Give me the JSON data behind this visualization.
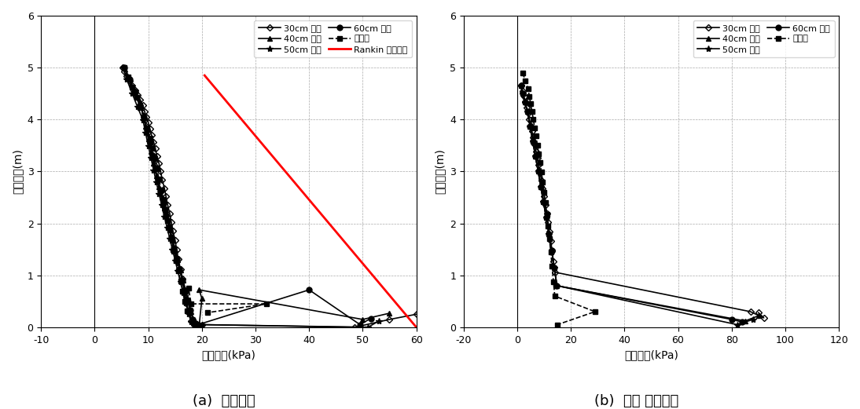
{
  "left": {
    "xlabel": "수평토압(kPa)",
    "ylabel": "벽체높이(m)",
    "xlim": [
      -10,
      60
    ],
    "ylim": [
      0,
      6
    ],
    "xticks": [
      -10,
      0,
      10,
      20,
      30,
      40,
      50,
      60
    ],
    "yticks": [
      0,
      1,
      2,
      3,
      4,
      5,
      6
    ],
    "caption": "(a)  수평토압",
    "series": {
      "30cm": {
        "label": "30cm 간격",
        "marker": "D",
        "markersize": 4,
        "fillstyle": "none",
        "color": "#000000",
        "x": [
          5.2,
          5.5,
          6.0,
          6.5,
          7.0,
          7.5,
          8.0,
          8.5,
          9.0,
          9.3,
          9.6,
          10.0,
          10.3,
          10.6,
          11.0,
          11.3,
          11.6,
          12.0,
          12.3,
          12.6,
          13.0,
          13.3,
          13.6,
          14.0,
          14.3,
          14.6,
          15.0,
          15.3,
          15.6,
          16.0,
          16.3,
          16.6,
          17.0,
          17.5,
          18.0,
          18.5,
          19.0,
          19.5,
          20.0,
          48.5,
          55.0,
          60.0
        ],
        "y": [
          5.0,
          4.92,
          4.83,
          4.74,
          4.65,
          4.56,
          4.47,
          4.38,
          4.27,
          4.16,
          4.05,
          3.94,
          3.82,
          3.7,
          3.57,
          3.44,
          3.3,
          3.15,
          3.0,
          2.84,
          2.68,
          2.52,
          2.36,
          2.19,
          2.02,
          1.85,
          1.67,
          1.49,
          1.31,
          1.12,
          0.93,
          0.73,
          0.53,
          0.32,
          0.12,
          0.05,
          0.05,
          0.05,
          0.05,
          0.0,
          0.15,
          0.25
        ]
      },
      "40cm": {
        "label": "40cm 간격",
        "marker": "^",
        "markersize": 5,
        "fillstyle": "full",
        "color": "#000000",
        "x": [
          5.5,
          6.5,
          7.5,
          8.5,
          9.0,
          9.5,
          10.0,
          10.5,
          11.0,
          11.5,
          12.0,
          12.5,
          13.0,
          13.5,
          14.0,
          14.5,
          15.0,
          15.5,
          16.0,
          16.5,
          17.0,
          17.5,
          18.0,
          18.5,
          19.0,
          19.5,
          20.0,
          19.5,
          50.0,
          55.0
        ],
        "y": [
          5.0,
          4.78,
          4.55,
          4.32,
          4.1,
          3.87,
          3.63,
          3.39,
          3.15,
          2.92,
          2.7,
          2.5,
          2.3,
          2.1,
          1.9,
          1.7,
          1.5,
          1.3,
          1.1,
          0.9,
          0.7,
          0.5,
          0.3,
          0.15,
          0.06,
          0.05,
          0.55,
          0.72,
          0.15,
          0.27
        ]
      },
      "50cm": {
        "label": "50cm 간격",
        "marker": "*",
        "markersize": 6,
        "fillstyle": "full",
        "color": "#000000",
        "x": [
          5.3,
          6.0,
          7.0,
          8.0,
          9.0,
          9.5,
          10.0,
          10.5,
          11.0,
          11.5,
          12.0,
          12.5,
          13.0,
          13.5,
          14.0,
          14.5,
          15.0,
          15.5,
          16.0,
          16.5,
          17.0,
          17.5,
          18.0,
          18.5,
          19.0,
          19.5,
          20.0,
          51.0,
          53.0
        ],
        "y": [
          5.0,
          4.77,
          4.5,
          4.24,
          3.99,
          3.74,
          3.49,
          3.26,
          3.02,
          2.79,
          2.57,
          2.35,
          2.13,
          1.92,
          1.71,
          1.5,
          1.29,
          1.08,
          0.87,
          0.66,
          0.46,
          0.26,
          0.1,
          0.05,
          0.05,
          0.05,
          0.05,
          0.0,
          0.12
        ]
      },
      "60cm": {
        "label": "60cm 간격",
        "marker": "o",
        "markersize": 5,
        "fillstyle": "full",
        "color": "#000000",
        "x": [
          5.5,
          6.5,
          7.5,
          8.5,
          9.2,
          9.8,
          10.3,
          10.8,
          11.3,
          11.8,
          12.3,
          12.8,
          13.3,
          13.8,
          14.3,
          14.8,
          15.3,
          15.8,
          16.3,
          16.8,
          17.3,
          17.8,
          18.3,
          18.8,
          19.3,
          40.0,
          49.5,
          51.5
        ],
        "y": [
          5.0,
          4.77,
          4.53,
          4.28,
          4.04,
          3.79,
          3.55,
          3.31,
          3.07,
          2.84,
          2.61,
          2.38,
          2.16,
          1.94,
          1.73,
          1.52,
          1.31,
          1.11,
          0.91,
          0.71,
          0.52,
          0.33,
          0.15,
          0.07,
          0.05,
          0.72,
          0.05,
          0.17
        ]
      },
      "block": {
        "label": "블록형",
        "marker": "s",
        "markersize": 5,
        "fillstyle": "full",
        "color": "#000000",
        "x": [
          5.5,
          6.2,
          7.0,
          7.8,
          8.5,
          9.2,
          9.8,
          10.3,
          10.8,
          11.2,
          11.6,
          12.0,
          12.4,
          12.8,
          13.2,
          13.6,
          14.0,
          14.4,
          14.8,
          15.2,
          15.6,
          16.0,
          16.4,
          16.8,
          17.2,
          17.5,
          18.0,
          32.0,
          21.0
        ],
        "y": [
          5.0,
          4.82,
          4.62,
          4.43,
          4.23,
          4.03,
          3.84,
          3.64,
          3.44,
          3.25,
          3.05,
          2.85,
          2.65,
          2.46,
          2.26,
          2.06,
          1.87,
          1.67,
          1.47,
          1.28,
          1.08,
          0.89,
          0.69,
          0.5,
          0.31,
          0.75,
          0.45,
          0.45,
          0.28
        ]
      },
      "rankin": {
        "label": "Rankin 주동토압",
        "color": "#ff0000",
        "x": [
          20.5,
          60.0
        ],
        "y": [
          4.85,
          0.0
        ]
      }
    }
  },
  "right": {
    "xlabel": "전단응력(kPa)",
    "ylabel": "벽체높이(m)",
    "xlim": [
      -20,
      120
    ],
    "ylim": [
      0,
      6
    ],
    "xticks": [
      -20,
      0,
      20,
      40,
      60,
      80,
      100,
      120
    ],
    "yticks": [
      0,
      1,
      2,
      3,
      4,
      5,
      6
    ],
    "caption": "(b)  벽체 전단응력",
    "series": {
      "30cm": {
        "label": "30cm 간격",
        "marker": "D",
        "markersize": 4,
        "fillstyle": "none",
        "color": "#000000",
        "x": [
          1.5,
          2.0,
          2.5,
          3.0,
          3.5,
          4.0,
          4.5,
          5.0,
          5.5,
          6.0,
          6.5,
          7.0,
          7.5,
          8.0,
          8.5,
          9.0,
          9.5,
          10.0,
          10.5,
          11.0,
          11.5,
          12.0,
          12.5,
          13.0,
          13.5,
          14.0,
          87.0,
          92.0,
          90.0
        ],
        "y": [
          4.65,
          4.55,
          4.45,
          4.34,
          4.23,
          4.12,
          4.01,
          3.89,
          3.77,
          3.65,
          3.52,
          3.39,
          3.26,
          3.12,
          2.98,
          2.83,
          2.68,
          2.52,
          2.36,
          2.19,
          2.02,
          1.84,
          1.66,
          1.47,
          1.27,
          1.06,
          0.3,
          0.18,
          0.28
        ]
      },
      "40cm": {
        "label": "40cm 간격",
        "marker": "^",
        "markersize": 5,
        "fillstyle": "full",
        "color": "#000000",
        "x": [
          1.5,
          2.0,
          2.8,
          3.8,
          4.8,
          5.8,
          6.8,
          7.8,
          8.8,
          9.8,
          10.8,
          11.8,
          12.8,
          13.8,
          14.8,
          85.0,
          90.0
        ],
        "y": [
          4.65,
          4.5,
          4.33,
          4.15,
          3.87,
          3.58,
          3.29,
          3.0,
          2.71,
          2.41,
          2.11,
          1.8,
          1.48,
          1.15,
          0.8,
          0.12,
          0.22
        ]
      },
      "50cm": {
        "label": "50cm 간격",
        "marker": "*",
        "markersize": 6,
        "fillstyle": "full",
        "color": "#000000",
        "x": [
          1.5,
          2.0,
          2.8,
          3.8,
          4.8,
          5.8,
          6.8,
          7.8,
          8.8,
          9.8,
          10.8,
          11.8,
          12.8,
          13.8,
          14.8,
          82.0,
          88.0
        ],
        "y": [
          4.65,
          4.5,
          4.33,
          4.15,
          3.87,
          3.58,
          3.29,
          3.0,
          2.71,
          2.41,
          2.11,
          1.8,
          1.48,
          1.15,
          0.8,
          0.05,
          0.15
        ]
      },
      "60cm": {
        "label": "60cm 간격",
        "marker": "o",
        "markersize": 5,
        "fillstyle": "full",
        "color": "#000000",
        "x": [
          1.5,
          2.0,
          2.8,
          3.8,
          4.8,
          5.8,
          6.8,
          7.8,
          8.8,
          9.8,
          10.8,
          11.8,
          12.8,
          13.8,
          14.8,
          80.0,
          84.0
        ],
        "y": [
          4.65,
          4.5,
          4.33,
          4.15,
          3.87,
          3.58,
          3.29,
          3.0,
          2.71,
          2.41,
          2.11,
          1.8,
          1.48,
          1.15,
          0.8,
          0.15,
          0.1
        ]
      },
      "block": {
        "label": "블록형",
        "marker": "s",
        "markersize": 5,
        "fillstyle": "full",
        "color": "#000000",
        "x": [
          2.0,
          3.0,
          4.0,
          4.5,
          5.0,
          5.5,
          6.0,
          6.5,
          7.0,
          7.5,
          8.0,
          8.5,
          9.0,
          9.5,
          10.0,
          10.5,
          11.0,
          11.5,
          12.0,
          12.5,
          13.0,
          13.5,
          14.0,
          29.0,
          15.0
        ],
        "y": [
          4.9,
          4.75,
          4.6,
          4.45,
          4.3,
          4.15,
          4.0,
          3.84,
          3.68,
          3.51,
          3.34,
          3.17,
          2.99,
          2.8,
          2.6,
          2.4,
          2.18,
          1.95,
          1.7,
          1.45,
          1.17,
          0.88,
          0.6,
          0.3,
          0.05
        ]
      }
    }
  },
  "font_size": 9,
  "label_font_size": 10,
  "caption_font_size": 13,
  "grid_color": "#aaaaaa",
  "grid_linestyle": "--",
  "grid_linewidth": 0.5
}
